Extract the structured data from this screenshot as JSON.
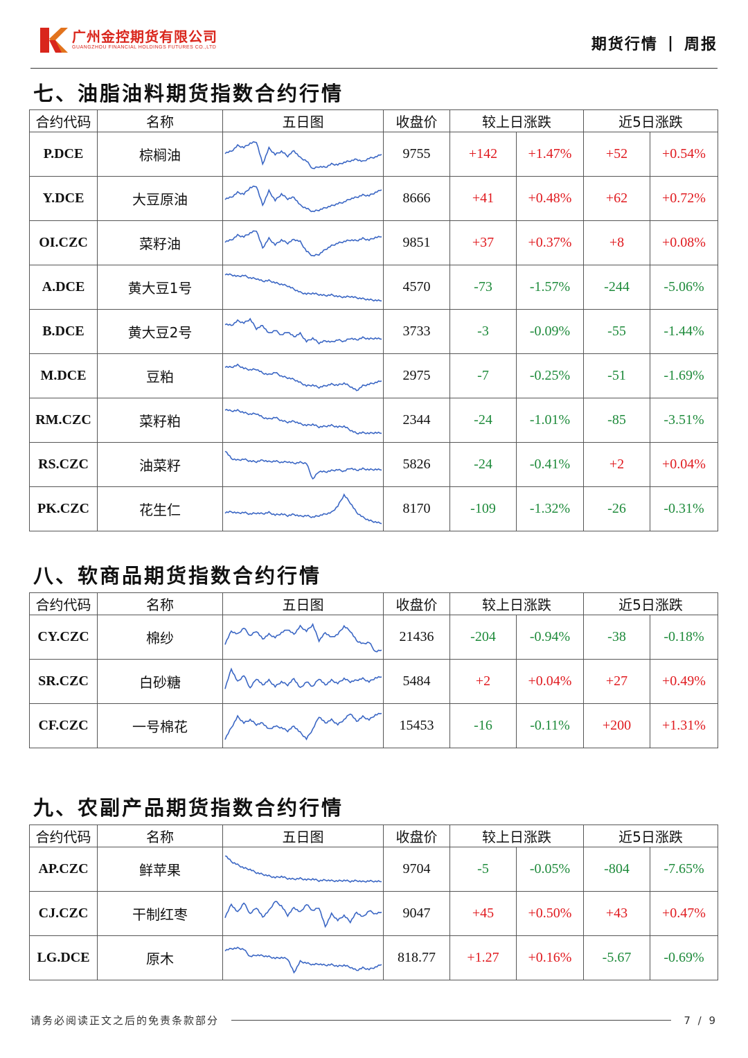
{
  "header": {
    "company_cn": "广州金控期货有限公司",
    "company_en": "GUANGZHOU FINANCIAL HOLDINGS FUTURES CO.,LTD",
    "report_type": "期货行情",
    "separator": "|",
    "report_period": "周报"
  },
  "columns": {
    "code": "合约代码",
    "name": "名称",
    "chart": "五日图",
    "close": "收盘价",
    "daily": "较上日涨跌",
    "five_day": "近5日涨跌"
  },
  "colors": {
    "up": "#e0191e",
    "down": "#1d8a3a",
    "line": "#3a66c4"
  },
  "sections": [
    {
      "title": "七、油脂油料期货指数合约行情",
      "rows": [
        {
          "code": "P.DCE",
          "name": "棕榈油",
          "close": "9755",
          "d_chg": "+142",
          "d_pct": "+1.47%",
          "w_chg": "+52",
          "w_pct": "+0.54%",
          "spark": [
            0.55,
            0.6,
            0.78,
            0.72,
            0.85,
            0.9,
            0.2,
            0.7,
            0.5,
            0.6,
            0.45,
            0.62,
            0.4,
            0.3,
            0.05,
            0.12,
            0.1,
            0.2,
            0.18,
            0.25,
            0.3,
            0.35,
            0.28,
            0.38,
            0.42,
            0.5
          ]
        },
        {
          "code": "Y.DCE",
          "name": "大豆原油",
          "close": "8666",
          "d_chg": "+41",
          "d_pct": "+0.48%",
          "w_chg": "+62",
          "w_pct": "+0.72%",
          "spark": [
            0.5,
            0.55,
            0.7,
            0.65,
            0.85,
            0.9,
            0.3,
            0.75,
            0.45,
            0.65,
            0.5,
            0.55,
            0.3,
            0.2,
            0.1,
            0.15,
            0.22,
            0.28,
            0.35,
            0.4,
            0.5,
            0.55,
            0.62,
            0.6,
            0.7,
            0.78
          ]
        },
        {
          "code": "OI.CZC",
          "name": "菜籽油",
          "close": "9851",
          "d_chg": "+37",
          "d_pct": "+0.37%",
          "w_chg": "+8",
          "w_pct": "+0.08%",
          "spark": [
            0.55,
            0.6,
            0.75,
            0.7,
            0.82,
            0.9,
            0.35,
            0.65,
            0.45,
            0.6,
            0.5,
            0.62,
            0.55,
            0.25,
            0.1,
            0.15,
            0.3,
            0.42,
            0.5,
            0.55,
            0.6,
            0.58,
            0.65,
            0.6,
            0.68,
            0.7
          ]
        },
        {
          "code": "A.DCE",
          "name": "黄大豆1号",
          "close": "4570",
          "d_chg": "-73",
          "d_pct": "-1.57%",
          "w_chg": "-244",
          "w_pct": "-5.06%",
          "spark": [
            0.92,
            0.9,
            0.85,
            0.88,
            0.8,
            0.78,
            0.7,
            0.72,
            0.65,
            0.6,
            0.55,
            0.45,
            0.35,
            0.3,
            0.32,
            0.28,
            0.25,
            0.27,
            0.22,
            0.2,
            0.22,
            0.18,
            0.15,
            0.12,
            0.1,
            0.08
          ]
        },
        {
          "code": "B.DCE",
          "name": "黄大豆2号",
          "close": "3733",
          "d_chg": "-3",
          "d_pct": "-0.09%",
          "w_chg": "-55",
          "w_pct": "-1.44%",
          "spark": [
            0.75,
            0.7,
            0.85,
            0.78,
            0.9,
            0.6,
            0.7,
            0.45,
            0.55,
            0.4,
            0.5,
            0.35,
            0.45,
            0.2,
            0.3,
            0.15,
            0.22,
            0.18,
            0.25,
            0.2,
            0.3,
            0.25,
            0.32,
            0.28,
            0.3,
            0.27
          ]
        },
        {
          "code": "M.DCE",
          "name": "豆粕",
          "close": "2975",
          "d_chg": "-7",
          "d_pct": "-0.25%",
          "w_chg": "-51",
          "w_pct": "-1.69%",
          "spark": [
            0.8,
            0.78,
            0.85,
            0.75,
            0.7,
            0.72,
            0.6,
            0.55,
            0.62,
            0.5,
            0.45,
            0.4,
            0.3,
            0.2,
            0.22,
            0.15,
            0.2,
            0.25,
            0.22,
            0.28,
            0.18,
            0.05,
            0.2,
            0.25,
            0.3,
            0.35
          ]
        },
        {
          "code": "RM.CZC",
          "name": "菜籽粕",
          "close": "2344",
          "d_chg": "-24",
          "d_pct": "-1.01%",
          "w_chg": "-85",
          "w_pct": "-3.51%",
          "spark": [
            0.85,
            0.8,
            0.82,
            0.75,
            0.7,
            0.72,
            0.6,
            0.55,
            0.6,
            0.5,
            0.45,
            0.48,
            0.4,
            0.35,
            0.38,
            0.3,
            0.32,
            0.35,
            0.3,
            0.32,
            0.2,
            0.1,
            0.12,
            0.1,
            0.12,
            0.1
          ]
        },
        {
          "code": "RS.CZC",
          "name": "油菜籽",
          "close": "5826",
          "d_chg": "-24",
          "d_pct": "-0.41%",
          "w_chg": "+2",
          "w_pct": "+0.04%",
          "spark": [
            0.95,
            0.7,
            0.65,
            0.68,
            0.62,
            0.6,
            0.65,
            0.6,
            0.62,
            0.58,
            0.6,
            0.55,
            0.58,
            0.55,
            0.05,
            0.3,
            0.28,
            0.32,
            0.35,
            0.3,
            0.4,
            0.33,
            0.38,
            0.35,
            0.36,
            0.34
          ]
        },
        {
          "code": "PK.CZC",
          "name": "花生仁",
          "close": "8170",
          "d_chg": "-109",
          "d_pct": "-1.32%",
          "w_chg": "-26",
          "w_pct": "-0.31%",
          "spark": [
            0.4,
            0.42,
            0.38,
            0.4,
            0.35,
            0.38,
            0.36,
            0.4,
            0.32,
            0.35,
            0.3,
            0.34,
            0.28,
            0.3,
            0.25,
            0.3,
            0.35,
            0.4,
            0.6,
            0.95,
            0.7,
            0.4,
            0.25,
            0.15,
            0.1,
            0.05
          ]
        }
      ]
    },
    {
      "title": "八、软商品期货指数合约行情",
      "rows": [
        {
          "code": "CY.CZC",
          "name": "棉纱",
          "close": "21436",
          "d_chg": "-204",
          "d_pct": "-0.94%",
          "w_chg": "-38",
          "w_pct": "-0.18%",
          "spark": [
            0.3,
            0.7,
            0.6,
            0.8,
            0.55,
            0.7,
            0.45,
            0.6,
            0.5,
            0.65,
            0.75,
            0.6,
            0.85,
            0.7,
            0.9,
            0.4,
            0.65,
            0.5,
            0.6,
            0.85,
            0.7,
            0.4,
            0.3,
            0.35,
            0.05,
            0.1
          ]
        },
        {
          "code": "SR.CZC",
          "name": "白砂糖",
          "close": "5484",
          "d_chg": "+2",
          "d_pct": "+0.04%",
          "w_chg": "+27",
          "w_pct": "+0.49%",
          "spark": [
            0.3,
            0.9,
            0.5,
            0.7,
            0.3,
            0.6,
            0.4,
            0.55,
            0.35,
            0.5,
            0.4,
            0.6,
            0.3,
            0.5,
            0.35,
            0.6,
            0.4,
            0.55,
            0.45,
            0.6,
            0.5,
            0.55,
            0.6,
            0.5,
            0.62,
            0.65
          ]
        },
        {
          "code": "CF.CZC",
          "name": "一号棉花",
          "close": "15453",
          "d_chg": "-16",
          "d_pct": "-0.11%",
          "w_chg": "+200",
          "w_pct": "+1.31%",
          "spark": [
            0.1,
            0.45,
            0.8,
            0.6,
            0.7,
            0.55,
            0.6,
            0.4,
            0.5,
            0.45,
            0.35,
            0.5,
            0.3,
            0.1,
            0.4,
            0.8,
            0.6,
            0.7,
            0.55,
            0.7,
            0.9,
            0.65,
            0.8,
            0.7,
            0.85,
            0.9
          ]
        }
      ]
    },
    {
      "title": "九、农副产品期货指数合约行情",
      "rows": [
        {
          "code": "AP.CZC",
          "name": "鲜苹果",
          "close": "9704",
          "d_chg": "-5",
          "d_pct": "-0.05%",
          "w_chg": "-804",
          "w_pct": "-7.65%",
          "spark": [
            0.95,
            0.75,
            0.65,
            0.55,
            0.5,
            0.4,
            0.35,
            0.3,
            0.25,
            0.28,
            0.22,
            0.2,
            0.22,
            0.18,
            0.2,
            0.15,
            0.17,
            0.15,
            0.14,
            0.16,
            0.13,
            0.15,
            0.12,
            0.14,
            0.13,
            0.12
          ]
        },
        {
          "code": "CJ.CZC",
          "name": "干制红枣",
          "close": "9047",
          "d_chg": "+45",
          "d_pct": "+0.50%",
          "w_chg": "+43",
          "w_pct": "+0.47%",
          "spark": [
            0.4,
            0.8,
            0.55,
            0.85,
            0.5,
            0.7,
            0.4,
            0.6,
            0.9,
            0.75,
            0.45,
            0.7,
            0.55,
            0.8,
            0.6,
            0.7,
            0.1,
            0.5,
            0.3,
            0.45,
            0.25,
            0.55,
            0.4,
            0.6,
            0.5,
            0.55
          ]
        },
        {
          "code": "LG.DCE",
          "name": "原木",
          "close": "818.77",
          "d_chg": "+1.27",
          "d_pct": "+0.16%",
          "w_chg": "-5.67",
          "w_pct": "-0.69%",
          "spark": [
            0.75,
            0.8,
            0.82,
            0.78,
            0.55,
            0.6,
            0.58,
            0.55,
            0.5,
            0.52,
            0.48,
            0.05,
            0.4,
            0.35,
            0.3,
            0.32,
            0.28,
            0.3,
            0.25,
            0.28,
            0.22,
            0.12,
            0.2,
            0.15,
            0.22,
            0.3
          ]
        }
      ]
    }
  ],
  "footer": {
    "disclaimer": "请务必阅读正文之后的免责条款部分",
    "page": "7 / 9"
  }
}
